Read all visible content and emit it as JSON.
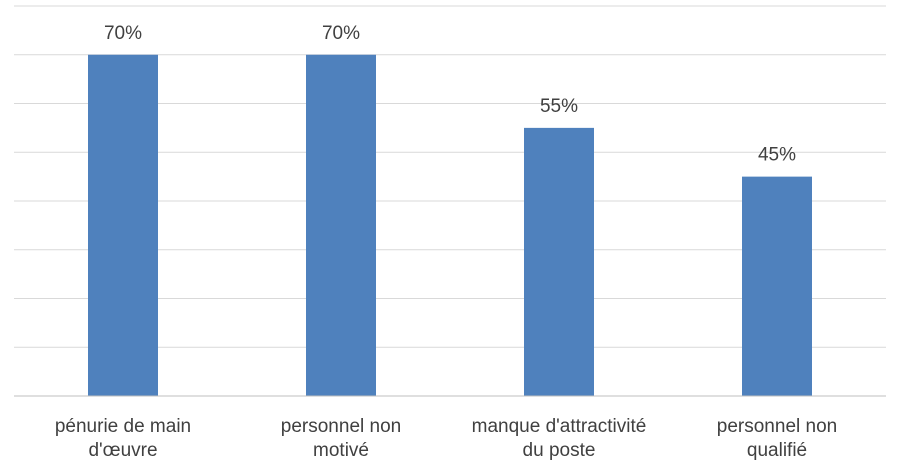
{
  "chart_data": {
    "type": "bar",
    "categories": [
      [
        "pénurie de main",
        "d'œuvre"
      ],
      [
        "personnel non",
        "motivé"
      ],
      [
        "manque d'attractivité",
        "du poste"
      ],
      [
        "personnel non",
        "qualifié"
      ]
    ],
    "values": [
      70,
      70,
      55,
      45
    ],
    "data_labels": [
      "70%",
      "70%",
      "55%",
      "45%"
    ],
    "ylim": [
      0,
      80
    ],
    "grid": true,
    "bar_color": "#4f81bd",
    "gridline_color": "#d9d9d9",
    "label_color": "#404040"
  }
}
